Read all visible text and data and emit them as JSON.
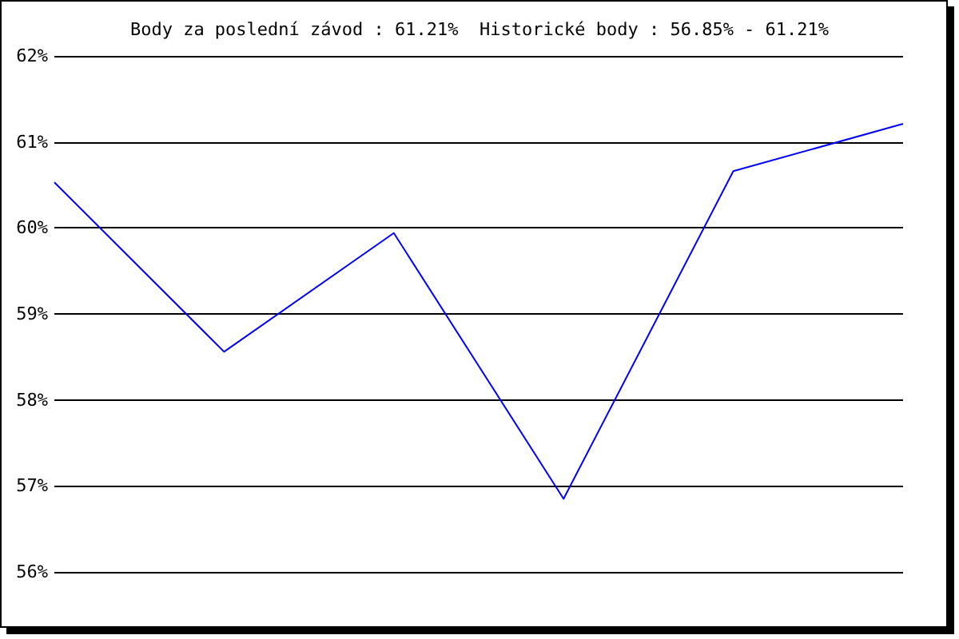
{
  "chart_data": {
    "type": "line",
    "title": "Body za poslední závod : 61.21%  Historické body : 56.85% - 61.21%",
    "categories": [
      null,
      null,
      null,
      null,
      null,
      null
    ],
    "series": [
      {
        "color": "#0000ff",
        "values": [
          60.53,
          58.56,
          59.94,
          56.85,
          60.66,
          61.21
        ]
      }
    ],
    "ylim": [
      56,
      62
    ],
    "yticks": [
      {
        "value": 56,
        "label": "56%"
      },
      {
        "value": 57,
        "label": "57%"
      },
      {
        "value": 58,
        "label": "58%"
      },
      {
        "value": 59,
        "label": "59%"
      },
      {
        "value": 60,
        "label": "60%"
      },
      {
        "value": 61,
        "label": "61%"
      },
      {
        "value": 62,
        "label": "62%"
      }
    ],
    "grid": "y",
    "marker": "none",
    "line_style": "solid"
  }
}
